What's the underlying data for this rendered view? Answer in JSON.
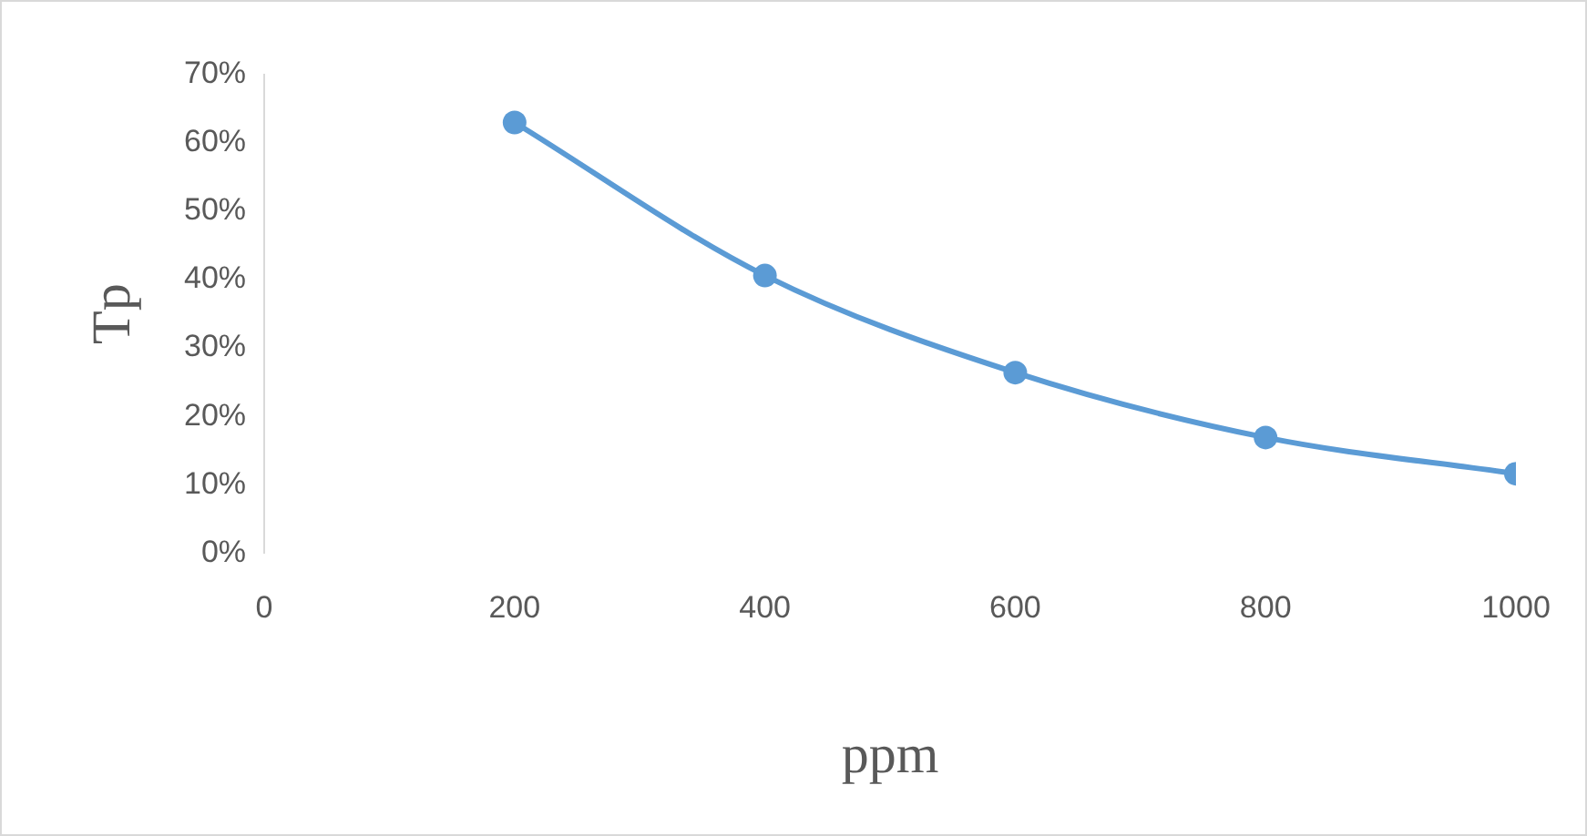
{
  "chart_data": {
    "type": "line",
    "xlabel": "ppm",
    "ylabel": "Tp",
    "x": [
      200,
      400,
      600,
      800,
      1000
    ],
    "series": [
      {
        "color": "#5b9bd5",
        "values": [
          63,
          40.6,
          26.4,
          16.9,
          11.6
        ]
      }
    ],
    "xlim": [
      0,
      1000
    ],
    "xticks": [
      0,
      200,
      400,
      600,
      800,
      1000
    ],
    "ylim": [
      0,
      70
    ],
    "yticks": [
      {
        "value": 0,
        "label": "0%"
      },
      {
        "value": 10,
        "label": "10%"
      },
      {
        "value": 20,
        "label": "20%"
      },
      {
        "value": 30,
        "label": "30%"
      },
      {
        "value": 40,
        "label": "40%"
      },
      {
        "value": 50,
        "label": "50%"
      },
      {
        "value": 60,
        "label": "60%"
      },
      {
        "value": 70,
        "label": "70%"
      }
    ],
    "grid": false,
    "legend": false,
    "marker": "circle",
    "line_style": "solid"
  }
}
